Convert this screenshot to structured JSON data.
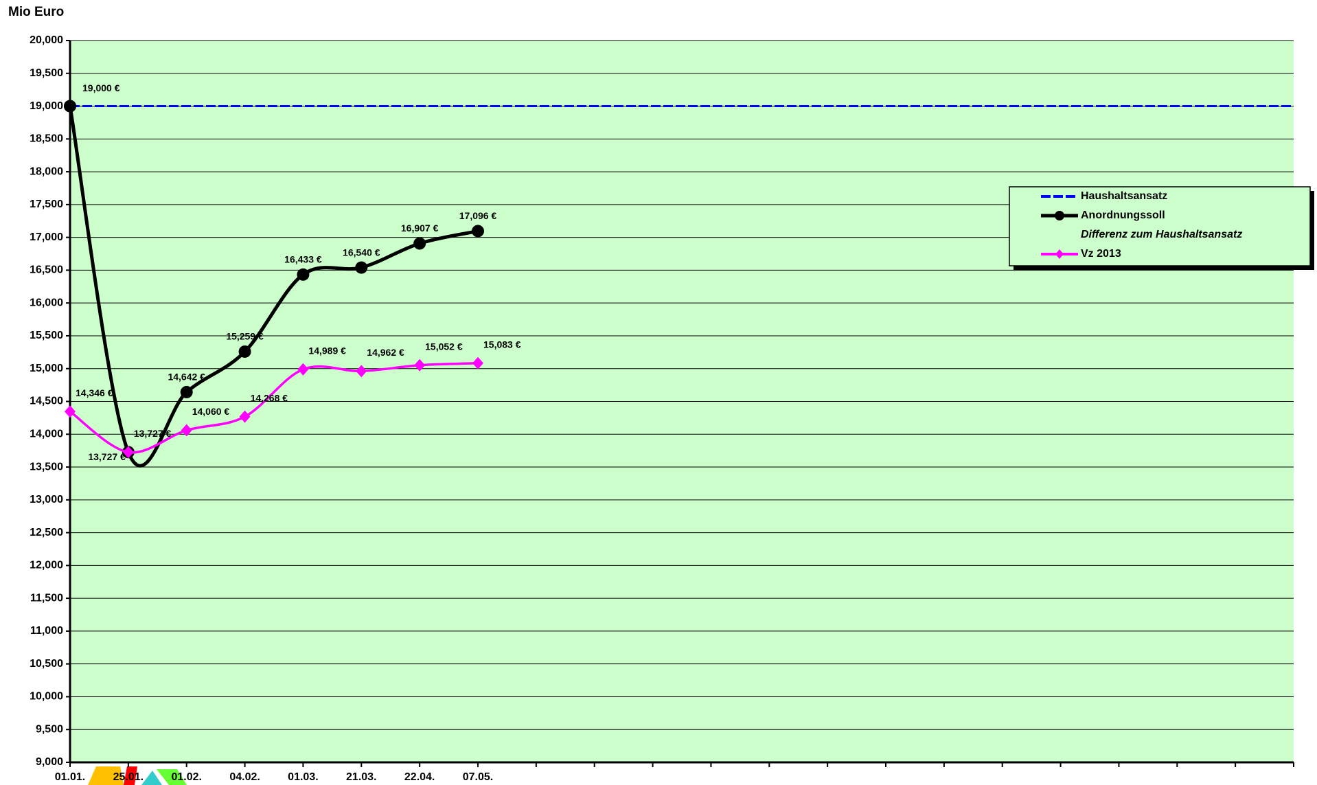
{
  "chart_data": {
    "type": "line",
    "y_axis_label": "Mio Euro",
    "categories": [
      "01.01.",
      "25.01.",
      "01.02.",
      "04.02.",
      "01.03.",
      "21.03.",
      "22.04.",
      "07.05.",
      null,
      null,
      null,
      null,
      null,
      null,
      null,
      null,
      null,
      null,
      null,
      null,
      null,
      null
    ],
    "ylim": [
      9000,
      20000
    ],
    "yticks": [
      {
        "value": 9000,
        "label": "9,000"
      },
      {
        "value": 9500,
        "label": "9,500"
      },
      {
        "value": 10000,
        "label": "10,000"
      },
      {
        "value": 10500,
        "label": "10,500"
      },
      {
        "value": 11000,
        "label": "11,000"
      },
      {
        "value": 11500,
        "label": "11,500"
      },
      {
        "value": 12000,
        "label": "12,000"
      },
      {
        "value": 12500,
        "label": "12,500"
      },
      {
        "value": 13000,
        "label": "13,000"
      },
      {
        "value": 13500,
        "label": "13,500"
      },
      {
        "value": 14000,
        "label": "14,000"
      },
      {
        "value": 14500,
        "label": "14,500"
      },
      {
        "value": 15000,
        "label": "15,000"
      },
      {
        "value": 15500,
        "label": "15,500"
      },
      {
        "value": 16000,
        "label": "16,000"
      },
      {
        "value": 16500,
        "label": "16,500"
      },
      {
        "value": 17000,
        "label": "17,000"
      },
      {
        "value": 17500,
        "label": "17,500"
      },
      {
        "value": 18000,
        "label": "18,000"
      },
      {
        "value": 18500,
        "label": "18,500"
      },
      {
        "value": 19000,
        "label": "19,000"
      },
      {
        "value": 19500,
        "label": "19,500"
      },
      {
        "value": 20000,
        "label": "20,000"
      }
    ],
    "grid": true,
    "legend_position": "upper right",
    "series": [
      {
        "name": "Haushaltsansatz",
        "color": "#0000ff",
        "style": "dashed",
        "values": [
          19000,
          19000,
          19000,
          19000,
          19000,
          19000,
          19000,
          19000,
          19000,
          19000,
          19000,
          19000,
          19000,
          19000,
          19000,
          19000,
          19000,
          19000,
          19000,
          19000,
          19000,
          19000
        ],
        "value_labels": [
          "19,000 €",
          null,
          null,
          null,
          null,
          null,
          null,
          null,
          null,
          null,
          null,
          null,
          null,
          null,
          null,
          null,
          null,
          null,
          null,
          null,
          null,
          null
        ]
      },
      {
        "name": "Anordnungssoll",
        "color": "#000000",
        "marker": "circle",
        "values": [
          19000,
          13727,
          14642,
          15259,
          16433,
          16540,
          16907,
          17096,
          null,
          null,
          null,
          null,
          null,
          null,
          null,
          null,
          null,
          null,
          null,
          null,
          null,
          null
        ],
        "value_labels": [
          null,
          "13,727 €",
          "14,642 €",
          "15,259 €",
          "16,433 €",
          "16,540 €",
          "16,907 €",
          "17,096 €",
          null,
          null,
          null,
          null,
          null,
          null,
          null,
          null,
          null,
          null,
          null,
          null,
          null,
          null
        ]
      },
      {
        "name": "Differenz zum Haushaltsansatz",
        "color": "none",
        "values": [
          null,
          null,
          null,
          null,
          null,
          null,
          null,
          null,
          null,
          null,
          null,
          null,
          null,
          null,
          null,
          null,
          null,
          null,
          null,
          null,
          null,
          null
        ]
      },
      {
        "name": "Vz 2013",
        "color": "#ff00ff",
        "marker": "diamond",
        "values": [
          14346,
          13727,
          14060,
          14268,
          14989,
          14962,
          15052,
          15083,
          null,
          null,
          null,
          null,
          null,
          null,
          null,
          null,
          null,
          null,
          null,
          null,
          null,
          null
        ],
        "value_labels": [
          "14,346 €",
          "13,727 €",
          "14,060 €",
          "14,268 €",
          "14,989 €",
          "14,962 €",
          "15,052 €",
          "15,083 €",
          null,
          null,
          null,
          null,
          null,
          null,
          null,
          null,
          null,
          null,
          null,
          null,
          null,
          null
        ]
      }
    ]
  }
}
